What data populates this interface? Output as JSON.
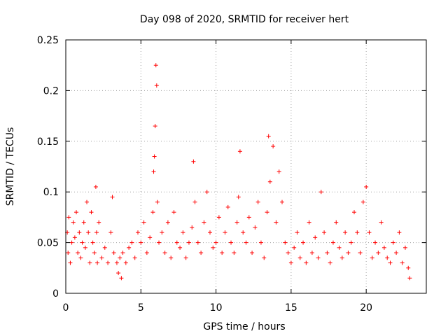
{
  "chart_data": {
    "type": "scatter",
    "title": "Day 098 of 2020, SRMTID for receiver hert",
    "xlabel": "GPS time / hours",
    "ylabel": "SRMTID / TECUs",
    "xlim": [
      0,
      24
    ],
    "ylim": [
      0,
      0.25
    ],
    "x_ticks": [
      0,
      5,
      10,
      15,
      20
    ],
    "x_tick_labels": [
      "0",
      "5",
      "10",
      "15",
      "20"
    ],
    "y_ticks": [
      0,
      0.05,
      0.1,
      0.15,
      0.2,
      0.25
    ],
    "y_tick_labels": [
      "0",
      "0.05",
      "0.1",
      "0.15",
      "0.2",
      "0.25"
    ],
    "grid": true,
    "marker": "+",
    "series_color": "#ff0000",
    "series": [
      {
        "name": "SRMTID",
        "x": [
          0.1,
          0.15,
          0.2,
          0.3,
          0.4,
          0.5,
          0.6,
          0.7,
          0.8,
          0.9,
          1.0,
          1.1,
          1.2,
          1.3,
          1.4,
          1.5,
          1.6,
          1.7,
          1.8,
          1.9,
          2.0,
          2.05,
          2.1,
          2.2,
          2.4,
          2.6,
          2.8,
          3.0,
          3.1,
          3.2,
          3.4,
          3.5,
          3.6,
          3.7,
          3.8,
          4.0,
          4.2,
          4.4,
          4.6,
          4.8,
          5.0,
          5.2,
          5.4,
          5.6,
          5.8,
          5.85,
          5.9,
          5.95,
          6.0,
          6.05,
          6.1,
          6.2,
          6.4,
          6.6,
          6.8,
          7.0,
          7.2,
          7.4,
          7.6,
          7.8,
          8.0,
          8.2,
          8.4,
          8.5,
          8.6,
          8.8,
          9.0,
          9.2,
          9.4,
          9.6,
          9.8,
          10.0,
          10.2,
          10.4,
          10.6,
          10.8,
          11.0,
          11.2,
          11.4,
          11.5,
          11.6,
          11.8,
          12.0,
          12.2,
          12.4,
          12.6,
          12.8,
          13.0,
          13.2,
          13.4,
          13.5,
          13.6,
          13.8,
          14.0,
          14.2,
          14.4,
          14.6,
          14.8,
          15.0,
          15.2,
          15.4,
          15.6,
          15.8,
          16.0,
          16.2,
          16.4,
          16.6,
          16.8,
          17.0,
          17.2,
          17.4,
          17.6,
          17.8,
          18.0,
          18.2,
          18.4,
          18.6,
          18.8,
          19.0,
          19.2,
          19.4,
          19.6,
          19.8,
          20.0,
          20.2,
          20.4,
          20.6,
          20.8,
          21.0,
          21.2,
          21.4,
          21.6,
          21.8,
          22.0,
          22.2,
          22.4,
          22.6,
          22.8,
          22.9
        ],
        "y": [
          0.06,
          0.04,
          0.075,
          0.03,
          0.05,
          0.07,
          0.055,
          0.08,
          0.04,
          0.06,
          0.035,
          0.05,
          0.07,
          0.045,
          0.09,
          0.06,
          0.03,
          0.08,
          0.05,
          0.04,
          0.105,
          0.06,
          0.03,
          0.07,
          0.035,
          0.045,
          0.03,
          0.06,
          0.095,
          0.04,
          0.03,
          0.02,
          0.035,
          0.015,
          0.04,
          0.03,
          0.045,
          0.05,
          0.035,
          0.06,
          0.05,
          0.07,
          0.04,
          0.055,
          0.08,
          0.12,
          0.135,
          0.165,
          0.225,
          0.205,
          0.09,
          0.05,
          0.06,
          0.04,
          0.07,
          0.035,
          0.08,
          0.05,
          0.045,
          0.06,
          0.035,
          0.05,
          0.065,
          0.13,
          0.09,
          0.05,
          0.04,
          0.07,
          0.1,
          0.06,
          0.045,
          0.05,
          0.075,
          0.04,
          0.06,
          0.085,
          0.05,
          0.04,
          0.07,
          0.095,
          0.14,
          0.06,
          0.05,
          0.075,
          0.04,
          0.065,
          0.09,
          0.05,
          0.035,
          0.08,
          0.155,
          0.11,
          0.145,
          0.07,
          0.12,
          0.09,
          0.05,
          0.04,
          0.03,
          0.045,
          0.06,
          0.035,
          0.05,
          0.03,
          0.07,
          0.04,
          0.055,
          0.035,
          0.1,
          0.06,
          0.04,
          0.03,
          0.05,
          0.07,
          0.045,
          0.035,
          0.06,
          0.04,
          0.05,
          0.08,
          0.06,
          0.04,
          0.09,
          0.105,
          0.06,
          0.035,
          0.05,
          0.04,
          0.07,
          0.045,
          0.035,
          0.03,
          0.05,
          0.04,
          0.06,
          0.03,
          0.045,
          0.025,
          0.015
        ]
      }
    ]
  }
}
